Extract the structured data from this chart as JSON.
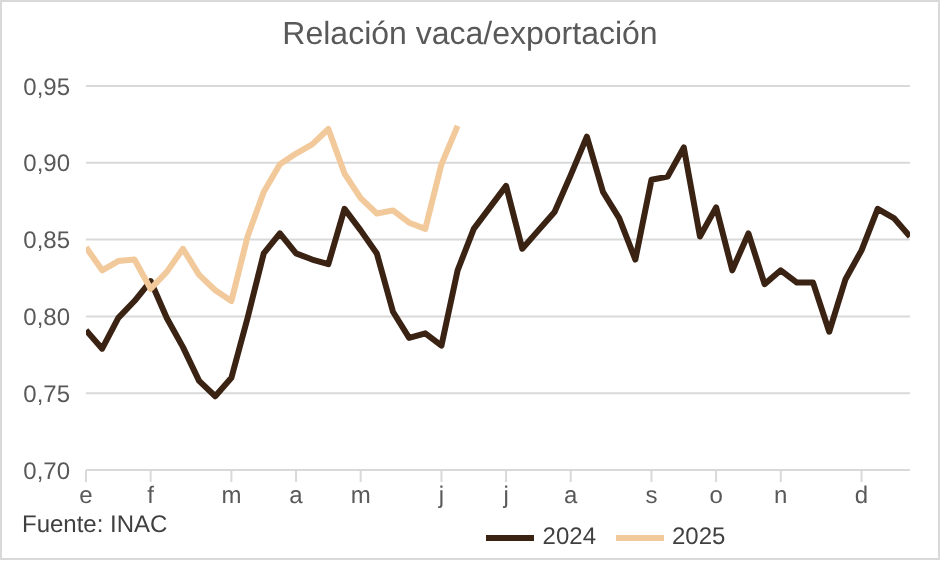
{
  "chart_data": {
    "type": "line",
    "title": "Relación vaca/exportación",
    "categories": [
      "e",
      null,
      null,
      null,
      "f",
      null,
      null,
      null,
      null,
      "m",
      null,
      null,
      null,
      "a",
      null,
      null,
      null,
      "m",
      null,
      null,
      null,
      null,
      "j",
      null,
      null,
      null,
      "j",
      null,
      null,
      null,
      "a",
      null,
      null,
      null,
      null,
      "s",
      null,
      null,
      null,
      "o",
      null,
      null,
      null,
      "n",
      null,
      null,
      null,
      null,
      "d",
      null,
      null,
      null
    ],
    "series": [
      {
        "name": "2024",
        "color": "#3b2314",
        "values": [
          0.791,
          0.779,
          0.799,
          0.81,
          0.823,
          0.799,
          0.78,
          0.758,
          0.748,
          0.76,
          0.799,
          0.841,
          0.854,
          0.841,
          0.837,
          0.834,
          0.87,
          0.856,
          0.841,
          0.803,
          0.786,
          0.789,
          0.781,
          0.83,
          0.857,
          0.871,
          0.885,
          0.844,
          0.856,
          0.868,
          0.892,
          0.917,
          0.881,
          0.864,
          0.837,
          0.889,
          0.891,
          0.91,
          0.852,
          0.871,
          0.83,
          0.854,
          0.821,
          0.83,
          0.822,
          0.822,
          0.79,
          0.824,
          0.843,
          0.87,
          0.864,
          0.852
        ]
      },
      {
        "name": "2025",
        "color": "#f2c99b",
        "values": [
          0.845,
          0.83,
          0.836,
          0.837,
          0.818,
          0.829,
          0.844,
          0.827,
          0.817,
          0.81,
          0.852,
          0.881,
          0.899,
          0.906,
          0.912,
          0.922,
          0.893,
          0.877,
          0.867,
          0.869,
          0.861,
          0.857,
          0.899,
          0.924,
          null,
          null,
          null,
          null,
          null,
          null,
          null,
          null,
          null,
          null,
          null,
          null,
          null,
          null,
          null,
          null,
          null,
          null,
          null,
          null,
          null,
          null,
          null,
          null,
          null,
          null,
          null,
          null
        ]
      }
    ],
    "ylim": [
      0.7,
      0.95
    ],
    "yticks": [
      {
        "value": 0.7,
        "label": "0,70"
      },
      {
        "value": 0.75,
        "label": "0,75"
      },
      {
        "value": 0.8,
        "label": "0,80"
      },
      {
        "value": 0.85,
        "label": "0,85"
      },
      {
        "value": 0.9,
        "label": "0,90"
      },
      {
        "value": 0.95,
        "label": "0,95"
      }
    ],
    "grid": "y",
    "legend": "bottom",
    "marker": "none",
    "line_style": "solid",
    "annotations": [
      "Fuente: INAC"
    ]
  }
}
